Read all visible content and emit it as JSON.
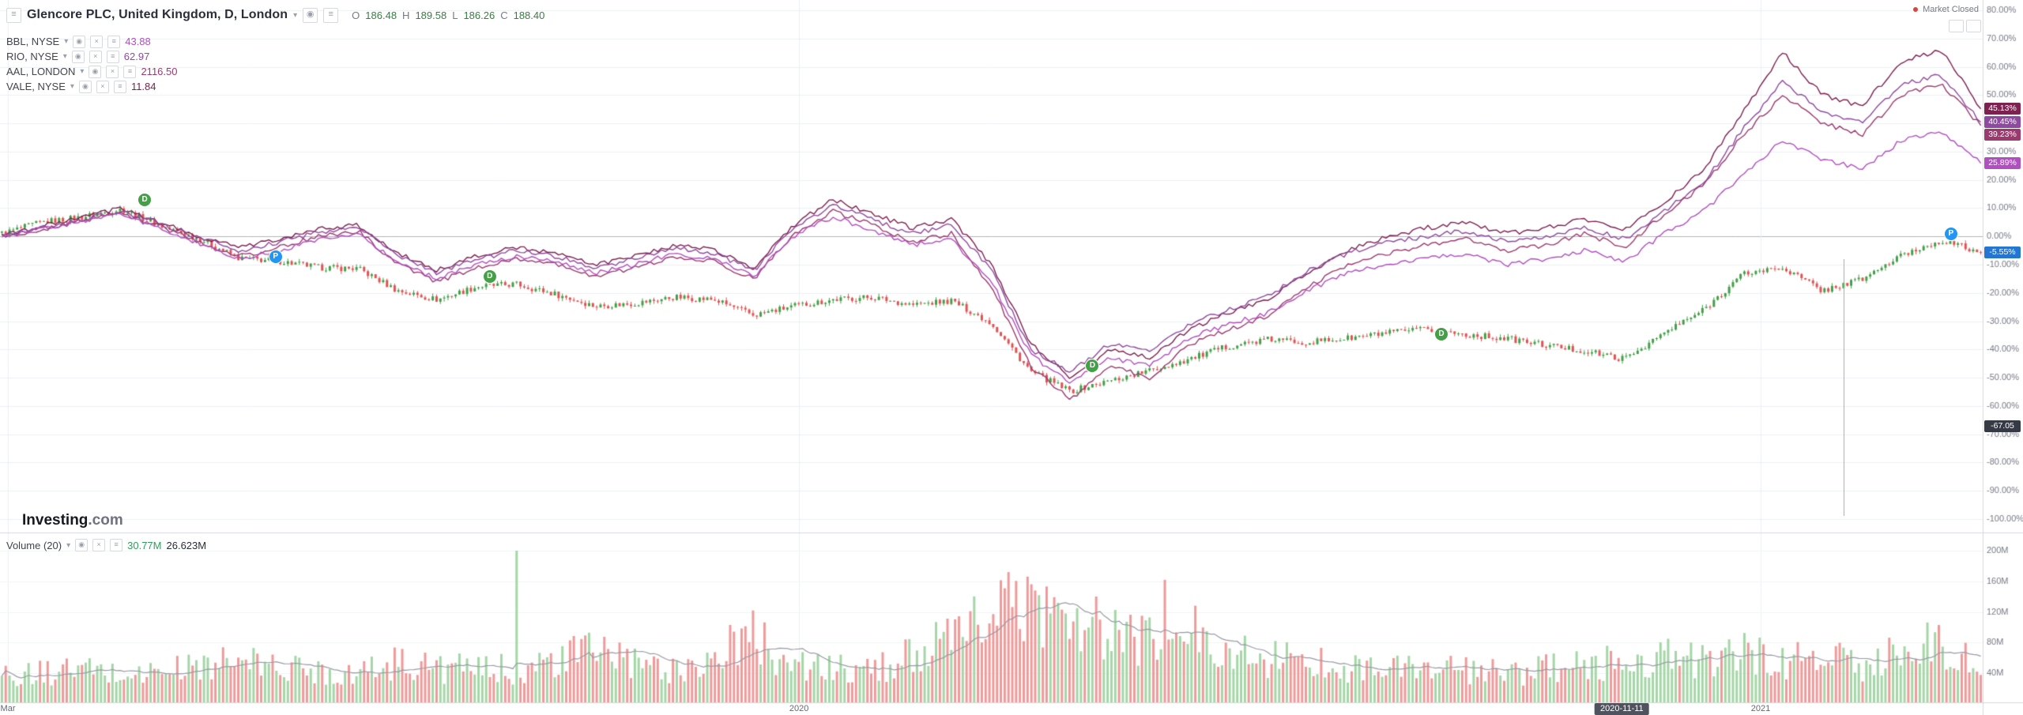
{
  "header": {
    "menu_icon": "burger",
    "title": "Glencore PLC, United Kingdom, D, London",
    "ohlc": {
      "o_label": "O",
      "o": "186.48",
      "h_label": "H",
      "h": "189.58",
      "l_label": "L",
      "l": "186.26",
      "c_label": "C",
      "c": "188.40",
      "value_color": "#3a7d44"
    },
    "market_status": "Market Closed",
    "status_dot_color": "#d8453c"
  },
  "compare_symbols": [
    {
      "name": "BBL, NYSE",
      "value": "43.88",
      "color": "#b04fc0"
    },
    {
      "name": "RIO, NYSE",
      "value": "62.97",
      "color": "#8d4a9e"
    },
    {
      "name": "AAL, LONDON",
      "value": "2116.50",
      "color": "#9b3a6e"
    },
    {
      "name": "VALE, NYSE",
      "value": "11.84",
      "color": "#7d2150"
    }
  ],
  "volume_legend": {
    "label": "Volume (20)",
    "value": "30.77M",
    "value_color": "#2e9e5b",
    "ma_value": "26.623M"
  },
  "logo": {
    "bold": "Investing",
    "rest": ".com"
  },
  "time_axis": {
    "labels": [
      {
        "text": "Mar",
        "t": 0.004
      },
      {
        "text": "2020",
        "t": 0.403
      },
      {
        "text": "2021",
        "t": 0.888
      }
    ],
    "badge": {
      "text": "2020-11-11",
      "t": 0.818,
      "color": "#50535e"
    }
  },
  "chart_data": {
    "type": "candlestick+line-overlays+volume",
    "percent_axis": {
      "min": -100,
      "max": 80,
      "step": 10
    },
    "grid_color": "#eef0f4",
    "zero_line_color": "#b2b5be",
    "vertical_gridlines_t": [
      0.004,
      0.403,
      0.888
    ],
    "candles": {
      "name": "Glencore PLC",
      "up_color": "#43a047",
      "down_color": "#e05353",
      "closes_pct": [
        1,
        5,
        6.8,
        9.6,
        3.7,
        -0.9,
        -7.8,
        -8.7,
        -11,
        -11.4,
        -19.2,
        -22.4,
        -17.8,
        -16.9,
        -20.5,
        -24.7,
        -23.7,
        -21.5,
        -22.4,
        -27.9,
        -24.7,
        -22.4,
        -21.5,
        -24.2,
        -22.8,
        -30.6,
        -47.9,
        -54.8,
        -51.1,
        -47.5,
        -43.4,
        -38.8,
        -36.5,
        -37.4,
        -36.1,
        -34.2,
        -32.9,
        -34.7,
        -36.1,
        -38.4,
        -40.6,
        -43.4,
        -34.2,
        -26,
        -13.2,
        -11,
        -19.2,
        -15.1,
        -6.8,
        -1.4,
        -5.55
      ],
      "last_badge": {
        "text": "-5.55%",
        "value": -5.55,
        "color": "#2576d2"
      }
    },
    "overlays": [
      {
        "name": "VALE",
        "color": "#7d2150",
        "values_pct": [
          0,
          3.5,
          6.5,
          10,
          5,
          0,
          -4,
          -1,
          2.5,
          4,
          -6,
          -12,
          -7,
          -4,
          -6,
          -10,
          -7,
          -3,
          -5,
          -11,
          4,
          13,
          8,
          3,
          6,
          -10,
          -38,
          -50,
          -40,
          -43,
          -33,
          -27,
          -22,
          -13,
          -5,
          0,
          3,
          5,
          1,
          3,
          6,
          2,
          12,
          24,
          44,
          65,
          50,
          46,
          62,
          66,
          45.13
        ],
        "badge": {
          "text": "45.13%",
          "value": 45.13
        }
      },
      {
        "name": "RIO",
        "color": "#8d4a9e",
        "values_pct": [
          0,
          3,
          6,
          9,
          4.5,
          -0.5,
          -5,
          -2,
          1.5,
          3,
          -7,
          -13,
          -8,
          -5,
          -7,
          -11,
          -8,
          -4,
          -6,
          -12,
          3,
          11,
          6,
          1,
          4,
          -12,
          -40,
          -48,
          -38,
          -41,
          -31,
          -26,
          -21,
          -12,
          -6,
          -2,
          0,
          2,
          -2,
          0,
          3,
          -1,
          9,
          19,
          38,
          55,
          44,
          40,
          54,
          57,
          40.45
        ],
        "badge": {
          "text": "40.45%",
          "value": 40.45
        }
      },
      {
        "name": "AAL",
        "color": "#9b3a6e",
        "values_pct": [
          0,
          2.5,
          5.5,
          8.5,
          3.5,
          -2,
          -7,
          -4,
          0,
          2,
          -10,
          -16,
          -11,
          -8,
          -10,
          -14,
          -11,
          -7,
          -9,
          -15,
          1,
          9,
          4,
          -2,
          1,
          -18,
          -46,
          -58,
          -46,
          -50,
          -38,
          -33,
          -28,
          -18,
          -10,
          -6,
          -3,
          -1,
          -5,
          -3,
          1,
          -4,
          8,
          18,
          36,
          50,
          40,
          36,
          50,
          54,
          39.23
        ],
        "badge": {
          "text": "39.23%",
          "value": 39.23
        }
      },
      {
        "name": "BBL",
        "color": "#b04fc0",
        "values_pct": [
          0,
          2.5,
          5,
          8,
          3,
          -2.5,
          -8,
          -5,
          -1,
          1,
          -9,
          -15,
          -10,
          -7,
          -9,
          -13,
          -10,
          -6,
          -8,
          -14,
          0,
          7,
          2,
          -3,
          -1,
          -16,
          -42,
          -52,
          -43,
          -46,
          -36,
          -31,
          -27,
          -19,
          -13,
          -10,
          -8,
          -6,
          -10,
          -8,
          -5,
          -9,
          1,
          9,
          22,
          34,
          27,
          24,
          34,
          37,
          25.89
        ],
        "badge": {
          "text": "25.89%",
          "value": 25.89
        }
      }
    ],
    "extra_badge": {
      "text": "-67.05",
      "value": -67.05,
      "color": "#363a45"
    },
    "markers": [
      {
        "t": 0.073,
        "pct": 12.8,
        "label": "D",
        "color": "#43a047",
        "name": "dividend-marker"
      },
      {
        "t": 0.139,
        "pct": -7.3,
        "label": "P",
        "color": "#2196f3",
        "name": "event-marker"
      },
      {
        "t": 0.247,
        "pct": -14.2,
        "label": "D",
        "color": "#43a047",
        "name": "dividend-marker"
      },
      {
        "t": 0.551,
        "pct": -45.7,
        "label": "D",
        "color": "#43a047",
        "name": "dividend-marker"
      },
      {
        "t": 0.727,
        "pct": -34.7,
        "label": "D",
        "color": "#43a047",
        "name": "dividend-marker"
      },
      {
        "t": 0.984,
        "pct": 0.9,
        "label": "P",
        "color": "#2196f3",
        "name": "event-marker"
      }
    ],
    "vertical_line": {
      "t": 0.93,
      "pct_top": -8,
      "pct_bottom": -99
    },
    "volume": {
      "anchors_M": [
        35,
        40,
        45,
        38,
        42,
        50,
        55,
        48,
        44,
        40,
        55,
        48,
        44,
        46,
        52,
        75,
        50,
        45,
        60,
        90,
        50,
        45,
        42,
        65,
        80,
        120,
        130,
        110,
        90,
        80,
        95,
        70,
        60,
        55,
        50,
        45,
        48,
        42,
        40,
        45,
        50,
        55,
        60,
        55,
        65,
        55,
        60,
        50,
        70,
        80,
        45
      ],
      "spikes": [
        {
          "t": 0.26,
          "v": 200,
          "dir": "up"
        },
        {
          "t": 0.587,
          "v": 162,
          "dir": "down"
        }
      ],
      "axis_ticks": [
        40,
        80,
        120,
        160,
        200
      ],
      "ma_period": 20,
      "up_color": "#a5d6a7",
      "down_color": "#ef9a9a",
      "ma_color": "#989ba3"
    }
  }
}
